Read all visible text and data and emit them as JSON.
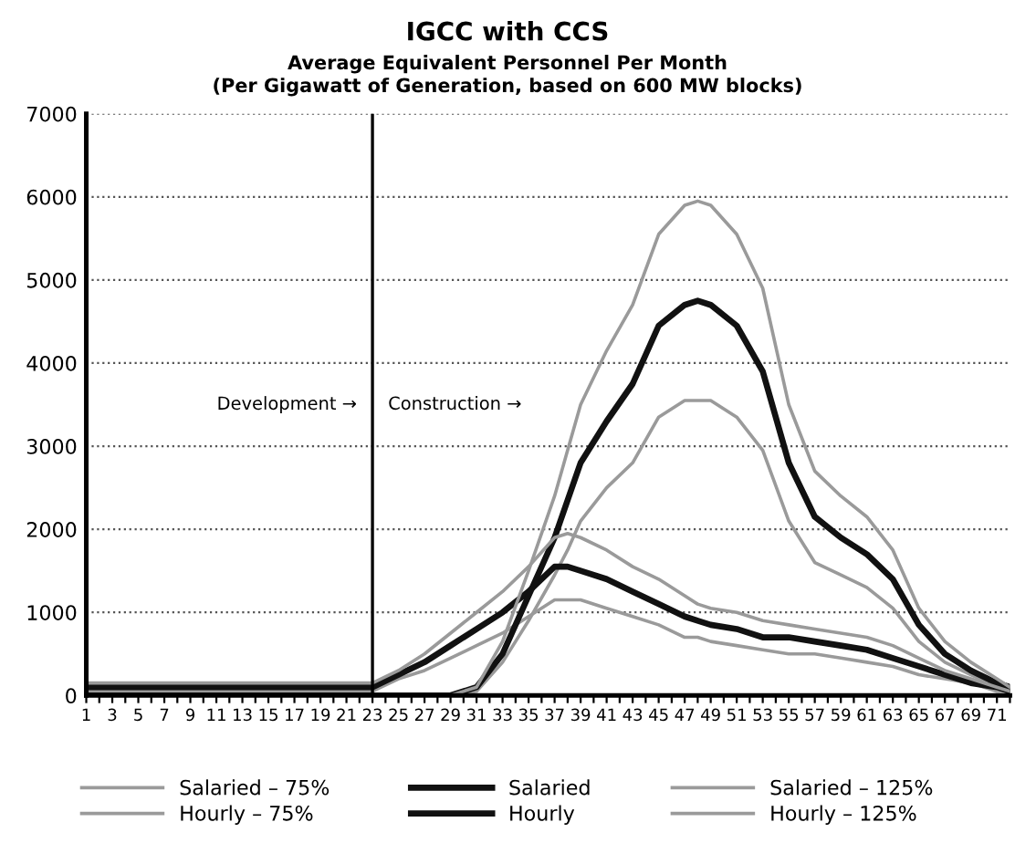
{
  "chart_data": {
    "type": "line",
    "title": "IGCC with CCS",
    "subtitle": "Average Equivalent Personnel Per Month\n(Per Gigawatt of Generation, based on 600 MW blocks)",
    "x": [
      1,
      5,
      10,
      15,
      20,
      23,
      25,
      27,
      29,
      31,
      33,
      35,
      37,
      38,
      39,
      41,
      43,
      45,
      47,
      48,
      49,
      51,
      53,
      55,
      57,
      59,
      61,
      63,
      65,
      67,
      69,
      71,
      72
    ],
    "series": [
      {
        "name": "Salaried – 75%",
        "color": "#9a9a9a",
        "values": [
          50,
          50,
          50,
          50,
          50,
          50,
          200,
          300,
          450,
          600,
          750,
          950,
          1150,
          1150,
          1150,
          1050,
          950,
          850,
          700,
          700,
          650,
          600,
          550,
          500,
          500,
          450,
          400,
          350,
          250,
          200,
          150,
          50,
          50
        ]
      },
      {
        "name": "Hourly – 75%",
        "color": "#9a9a9a",
        "values": [
          0,
          0,
          0,
          0,
          0,
          0,
          0,
          0,
          0,
          50,
          400,
          900,
          1450,
          1750,
          2100,
          2500,
          2800,
          3350,
          3550,
          3550,
          3550,
          3350,
          2950,
          2100,
          1600,
          1450,
          1300,
          1050,
          650,
          400,
          250,
          100,
          50
        ]
      },
      {
        "name": "Salaried",
        "color": "#111111",
        "values": [
          100,
          100,
          100,
          100,
          100,
          100,
          250,
          400,
          600,
          800,
          1000,
          1250,
          1550,
          1550,
          1500,
          1400,
          1250,
          1100,
          950,
          900,
          850,
          800,
          700,
          700,
          650,
          600,
          550,
          450,
          350,
          250,
          150,
          100,
          50
        ]
      },
      {
        "name": "Hourly",
        "color": "#111111",
        "values": [
          0,
          0,
          0,
          0,
          0,
          0,
          0,
          0,
          0,
          100,
          500,
          1200,
          1900,
          2350,
          2800,
          3300,
          3750,
          4450,
          4700,
          4750,
          4700,
          4450,
          3900,
          2800,
          2150,
          1900,
          1700,
          1400,
          850,
          500,
          300,
          150,
          100
        ]
      },
      {
        "name": "Salaried – 125%",
        "color": "#9a9a9a",
        "values": [
          150,
          150,
          150,
          150,
          150,
          150,
          300,
          500,
          750,
          1000,
          1250,
          1550,
          1900,
          1950,
          1900,
          1750,
          1550,
          1400,
          1200,
          1100,
          1050,
          1000,
          900,
          850,
          800,
          750,
          700,
          600,
          450,
          300,
          200,
          100,
          50
        ]
      },
      {
        "name": "Hourly – 125%",
        "color": "#9a9a9a",
        "values": [
          0,
          0,
          0,
          0,
          0,
          0,
          0,
          0,
          0,
          100,
          650,
          1500,
          2400,
          2950,
          3500,
          4150,
          4700,
          5550,
          5900,
          5950,
          5900,
          5550,
          4900,
          3500,
          2700,
          2400,
          2150,
          1750,
          1050,
          650,
          400,
          200,
          100
        ]
      }
    ],
    "xlim": [
      1,
      72
    ],
    "xticks": [
      1,
      {
        "value": 2,
        "label": null
      },
      3,
      {
        "value": 4,
        "label": null
      },
      5,
      {
        "value": 6,
        "label": null
      },
      7,
      {
        "value": 8,
        "label": null
      },
      9,
      {
        "value": 10,
        "label": null
      },
      11,
      {
        "value": 12,
        "label": null
      },
      13,
      {
        "value": 14,
        "label": null
      },
      15,
      {
        "value": 16,
        "label": null
      },
      17,
      {
        "value": 18,
        "label": null
      },
      19,
      {
        "value": 20,
        "label": null
      },
      21,
      {
        "value": 22,
        "label": null
      },
      23,
      {
        "value": 24,
        "label": null
      },
      25,
      {
        "value": 26,
        "label": null
      },
      27,
      {
        "value": 28,
        "label": null
      },
      29,
      {
        "value": 30,
        "label": null
      },
      31,
      {
        "value": 32,
        "label": null
      },
      33,
      {
        "value": 34,
        "label": null
      },
      35,
      {
        "value": 36,
        "label": null
      },
      37,
      {
        "value": 38,
        "label": null
      },
      39,
      {
        "value": 40,
        "label": null
      },
      41,
      {
        "value": 42,
        "label": null
      },
      43,
      {
        "value": 44,
        "label": null
      },
      45,
      {
        "value": 46,
        "label": null
      },
      47,
      {
        "value": 48,
        "label": null
      },
      49,
      {
        "value": 50,
        "label": null
      },
      51,
      {
        "value": 52,
        "label": null
      },
      53,
      {
        "value": 54,
        "label": null
      },
      55,
      {
        "value": 56,
        "label": null
      },
      57,
      {
        "value": 58,
        "label": null
      },
      59,
      {
        "value": 60,
        "label": null
      },
      61,
      {
        "value": 62,
        "label": null
      },
      63,
      {
        "value": 64,
        "label": null
      },
      65,
      {
        "value": 66,
        "label": null
      },
      67,
      {
        "value": 68,
        "label": null
      },
      69,
      {
        "value": 70,
        "label": null
      },
      71,
      {
        "value": 72,
        "label": null
      }
    ],
    "ylim": [
      0,
      7000
    ],
    "yticks": [
      0,
      1000,
      2000,
      3000,
      4000,
      5000,
      6000,
      7000
    ],
    "grid": "y",
    "legend": "bottom",
    "marker": "none",
    "line_style": "solid",
    "ref_lines": [
      {
        "axis": "x",
        "value": 23,
        "color": "#000000"
      }
    ],
    "annotations": [
      "Development →",
      "Construction →"
    ]
  }
}
